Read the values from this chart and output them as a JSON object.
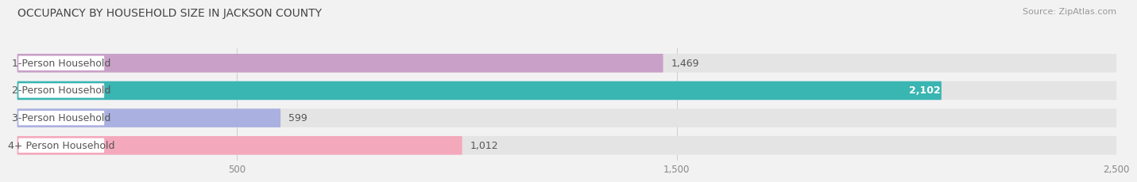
{
  "title": "OCCUPANCY BY HOUSEHOLD SIZE IN JACKSON COUNTY",
  "source": "Source: ZipAtlas.com",
  "categories": [
    "1-Person Household",
    "2-Person Household",
    "3-Person Household",
    "4+ Person Household"
  ],
  "values": [
    1469,
    2102,
    599,
    1012
  ],
  "bar_colors": [
    "#c9a0c8",
    "#39b5b2",
    "#aab0e0",
    "#f4a8bc"
  ],
  "xlim": [
    0,
    2500
  ],
  "xticks": [
    500,
    1500,
    2500
  ],
  "background_color": "#f2f2f2",
  "bar_bg_color": "#e4e4e4",
  "title_fontsize": 10,
  "source_fontsize": 8,
  "label_fontsize": 9,
  "value_fontsize": 9,
  "bar_height": 0.68,
  "bar_gap": 1.0
}
